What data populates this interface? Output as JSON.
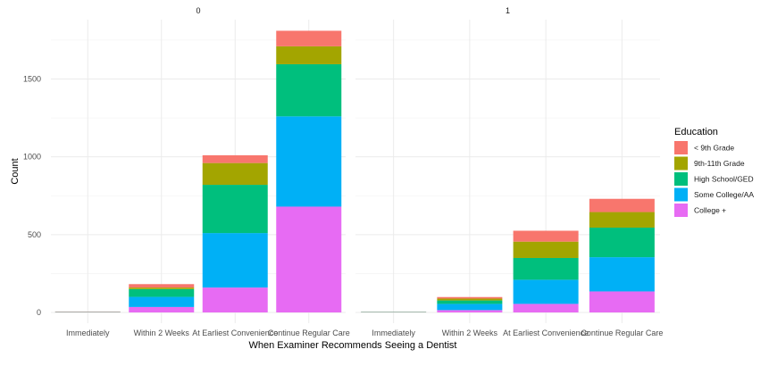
{
  "chart_data": {
    "type": "bar",
    "stacked": true,
    "facet_labels": [
      "0",
      "1"
    ],
    "categories": [
      "Immediately",
      "Within 2 Weeks",
      "At Earliest Convenience",
      "Continue Regular Care"
    ],
    "xlabel": "When Examiner Recommends Seeing a Dentist",
    "ylabel": "Count",
    "ylim": [
      0,
      1850
    ],
    "y_ticks": [
      0,
      500,
      1000,
      1500
    ],
    "legend": {
      "title": "Education",
      "position": "right"
    },
    "series": [
      {
        "name": "< 9th Grade",
        "color": "#F8766D",
        "facets": [
          [
            2,
            22,
            50,
            100
          ],
          [
            1,
            10,
            70,
            85
          ]
        ]
      },
      {
        "name": "9th-11th Grade",
        "color": "#A3A500",
        "facets": [
          [
            1,
            10,
            140,
            115
          ],
          [
            1,
            12,
            105,
            100
          ]
        ]
      },
      {
        "name": "High School/GED",
        "color": "#00BF7D",
        "facets": [
          [
            1,
            50,
            310,
            335
          ],
          [
            1,
            22,
            140,
            190
          ]
        ]
      },
      {
        "name": "Some College/AA",
        "color": "#00B0F6",
        "facets": [
          [
            1,
            65,
            350,
            580
          ],
          [
            1,
            40,
            155,
            220
          ]
        ]
      },
      {
        "name": "College +",
        "color": "#E76BF3",
        "facets": [
          [
            1,
            35,
            160,
            680
          ],
          [
            1,
            15,
            55,
            135
          ]
        ]
      }
    ]
  }
}
